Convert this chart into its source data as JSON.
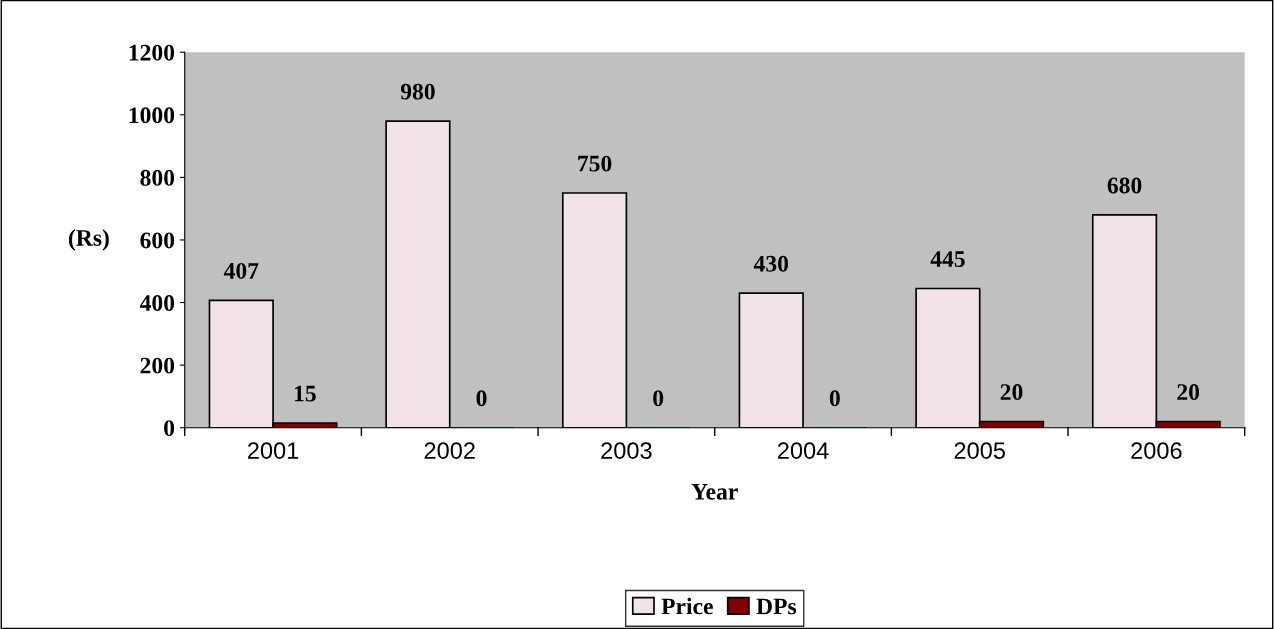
{
  "chart_data": {
    "type": "bar",
    "xlabel": "Year",
    "ylabel": "(Rs)",
    "categories": [
      "2001",
      "2002",
      "2003",
      "2004",
      "2005",
      "2006"
    ],
    "series": [
      {
        "name": "Price",
        "color": "#f2e2ea",
        "values": [
          407,
          980,
          750,
          430,
          445,
          680
        ]
      },
      {
        "name": "DPs",
        "color": "#800000",
        "values": [
          15,
          0,
          0,
          0,
          20,
          20
        ]
      }
    ],
    "ylim": [
      0,
      1200
    ],
    "yticks": [
      0,
      200,
      400,
      600,
      800,
      1000,
      1200
    ],
    "data_labels": true,
    "grid": false,
    "legend": "bottom"
  }
}
